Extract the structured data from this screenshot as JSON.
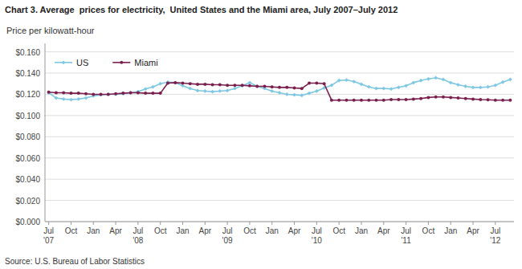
{
  "chart_data": {
    "type": "line",
    "title": "Chart 3. Average  prices for electricity,  United States and the Miami area, July 2007–July 2012",
    "ylabel": "Price per kilowatt-hour",
    "source": "Source: U.S. Bureau of Labor Statistics",
    "categories": [
      "Jul\n'07",
      null,
      null,
      "Oct",
      null,
      null,
      "Jan",
      null,
      null,
      "Apr",
      null,
      null,
      "Jul\n'08",
      null,
      null,
      "Oct",
      null,
      null,
      "Jan",
      null,
      null,
      "Apr",
      null,
      null,
      "Jul\n'09",
      null,
      null,
      "Oct",
      null,
      null,
      "Jan",
      null,
      null,
      "Apr",
      null,
      null,
      "Jul\n'10",
      null,
      null,
      "Oct",
      null,
      null,
      "Jan",
      null,
      null,
      "Apr",
      null,
      null,
      "Jul\n'11",
      null,
      null,
      "Oct",
      null,
      null,
      "Jan",
      null,
      null,
      "Apr",
      null,
      null,
      "Jul\n'12",
      null,
      null
    ],
    "series": [
      {
        "name": "US",
        "color": "#7ec8e3",
        "marker": "diamond",
        "values": [
          0.1215,
          0.1165,
          0.1155,
          0.115,
          0.1155,
          0.1165,
          0.1185,
          0.1195,
          0.12,
          0.12,
          0.1205,
          0.1215,
          0.1225,
          0.125,
          0.127,
          0.13,
          0.1315,
          0.131,
          0.128,
          0.1255,
          0.1235,
          0.123,
          0.1225,
          0.123,
          0.1235,
          0.1255,
          0.128,
          0.131,
          0.1275,
          0.1255,
          0.123,
          0.1215,
          0.12,
          0.1195,
          0.119,
          0.121,
          0.123,
          0.126,
          0.1285,
          0.133,
          0.1335,
          0.132,
          0.1295,
          0.127,
          0.1255,
          0.1255,
          0.125,
          0.1265,
          0.128,
          0.131,
          0.133,
          0.1345,
          0.1355,
          0.134,
          0.131,
          0.129,
          0.1275,
          0.1265,
          0.1265,
          0.127,
          0.1285,
          0.1315,
          0.134
        ]
      },
      {
        "name": "Miami",
        "color": "#7b1f4e",
        "marker": "circle",
        "values": [
          0.122,
          0.1215,
          0.1215,
          0.121,
          0.121,
          0.1205,
          0.12,
          0.12,
          0.12,
          0.1205,
          0.121,
          0.1215,
          0.1215,
          0.121,
          0.121,
          0.121,
          0.1305,
          0.131,
          0.1305,
          0.13,
          0.1295,
          0.1295,
          0.129,
          0.129,
          0.1285,
          0.1285,
          0.1285,
          0.128,
          0.1275,
          0.1275,
          0.127,
          0.1265,
          0.1265,
          0.126,
          0.1255,
          0.1305,
          0.1305,
          0.13,
          0.1145,
          0.1145,
          0.1145,
          0.1145,
          0.1145,
          0.1145,
          0.1145,
          0.1145,
          0.115,
          0.115,
          0.115,
          0.1155,
          0.116,
          0.117,
          0.1175,
          0.1175,
          0.117,
          0.1165,
          0.116,
          0.1155,
          0.115,
          0.1148,
          0.1145,
          0.1145,
          0.1145
        ]
      }
    ],
    "ylim": [
      0.0,
      0.168
    ],
    "yticks": [
      {
        "value": 0.0,
        "label": "$0.000"
      },
      {
        "value": 0.02,
        "label": "$0.020"
      },
      {
        "value": 0.04,
        "label": "$0.040"
      },
      {
        "value": 0.06,
        "label": "$0.060"
      },
      {
        "value": 0.08,
        "label": "$0.080"
      },
      {
        "value": 0.1,
        "label": "$0.100"
      },
      {
        "value": 0.12,
        "label": "$0.120"
      },
      {
        "value": 0.14,
        "label": "$0.140"
      },
      {
        "value": 0.16,
        "label": "$0.160"
      }
    ],
    "grid": true,
    "legend": "top-left"
  }
}
